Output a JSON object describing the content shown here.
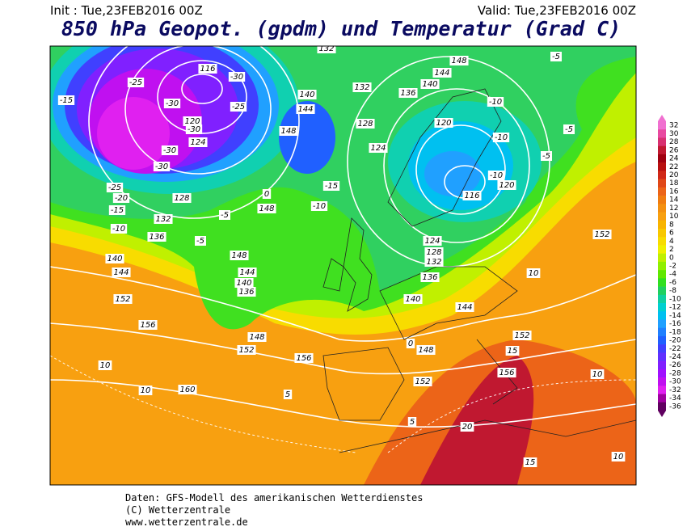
{
  "header": {
    "init": "Init : Tue,23FEB2016 00Z",
    "valid": "Valid: Tue,23FEB2016 00Z",
    "title": "850 hPa Geopot. (gpdm) und Temperatur (Grad C)"
  },
  "legend": {
    "levels": [
      {
        "value": 32,
        "color": "#f070d0"
      },
      {
        "value": 30,
        "color": "#e84aa0"
      },
      {
        "value": 28,
        "color": "#d83070"
      },
      {
        "value": 26,
        "color": "#c01830"
      },
      {
        "value": 24,
        "color": "#a00010"
      },
      {
        "value": 22,
        "color": "#b81010"
      },
      {
        "value": 20,
        "color": "#d02818"
      },
      {
        "value": 18,
        "color": "#e04818"
      },
      {
        "value": 16,
        "color": "#ec6418"
      },
      {
        "value": 14,
        "color": "#f07c10"
      },
      {
        "value": 12,
        "color": "#f49010"
      },
      {
        "value": 10,
        "color": "#f8a010"
      },
      {
        "value": 8,
        "color": "#f8b400"
      },
      {
        "value": 6,
        "color": "#f8c800"
      },
      {
        "value": 4,
        "color": "#f8dc00"
      },
      {
        "value": 2,
        "color": "#f0f000"
      },
      {
        "value": 0,
        "color": "#c0f000"
      },
      {
        "value": -2,
        "color": "#90f000"
      },
      {
        "value": -4,
        "color": "#60e800"
      },
      {
        "value": -6,
        "color": "#30e020"
      },
      {
        "value": -8,
        "color": "#20d060"
      },
      {
        "value": -10,
        "color": "#10d0a0"
      },
      {
        "value": -12,
        "color": "#00d0d0"
      },
      {
        "value": -14,
        "color": "#00c0f0"
      },
      {
        "value": -16,
        "color": "#20a0ff"
      },
      {
        "value": -18,
        "color": "#2080ff"
      },
      {
        "value": -20,
        "color": "#2060ff"
      },
      {
        "value": -22,
        "color": "#4040ff"
      },
      {
        "value": -24,
        "color": "#6030ff"
      },
      {
        "value": -26,
        "color": "#8020ff"
      },
      {
        "value": -28,
        "color": "#a010ff"
      },
      {
        "value": -30,
        "color": "#c010f0"
      },
      {
        "value": -32,
        "color": "#e020f0"
      },
      {
        "value": -34,
        "color": "#a000a0"
      },
      {
        "value": -36,
        "color": "#600060"
      }
    ]
  },
  "contour_labels": [
    116,
    -30,
    -25,
    -30,
    -25,
    -15,
    120,
    -30,
    124,
    -30,
    -30,
    -25,
    -20,
    128,
    -15,
    132,
    -10,
    136,
    140,
    144,
    152,
    156,
    160,
    10,
    10,
    -5,
    148,
    0,
    -5,
    148,
    144,
    140,
    136,
    148,
    152,
    156,
    5,
    132,
    140,
    144,
    148,
    -15,
    -10,
    128,
    124,
    132,
    136,
    148,
    144,
    140,
    120,
    -10,
    -10,
    -5,
    -10,
    120,
    116,
    124,
    128,
    132,
    136,
    140,
    144,
    148,
    152,
    156,
    152,
    152,
    10,
    15,
    20,
    15,
    10,
    10,
    -5,
    -5,
    5,
    0
  ],
  "footer": [
    "Daten: GFS-Modell des amerikanischen Wetterdienstes",
    "(C) Wetterzentrale",
    "www.wetterzentrale.de"
  ]
}
